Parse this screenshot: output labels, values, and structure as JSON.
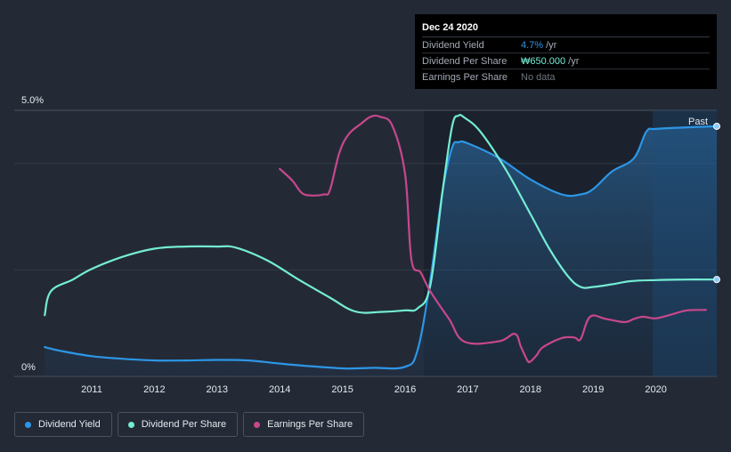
{
  "chart_data": {
    "type": "line",
    "title": "",
    "xlabel": "",
    "ylabel": "",
    "x_ticks": [
      "2011",
      "2012",
      "2013",
      "2014",
      "2015",
      "2016",
      "2017",
      "2018",
      "2019",
      "2020"
    ],
    "y_ticks": [
      "0%",
      "5.0%"
    ],
    "xlim": [
      2010.2,
      2021.0
    ],
    "ylim": [
      0,
      5.0
    ],
    "past_label": "Past",
    "past_region_start": 2016.3,
    "series": [
      {
        "name": "Dividend Yield",
        "color": "#2d96e6",
        "unit": "percent",
        "x": [
          2010.25,
          2010.5,
          2011.0,
          2011.5,
          2012.0,
          2012.5,
          2013.0,
          2013.5,
          2014.0,
          2014.5,
          2015.0,
          2015.2,
          2015.5,
          2016.0,
          2016.2,
          2016.4,
          2016.6,
          2016.75,
          2016.85,
          2017.0,
          2017.5,
          2018.0,
          2018.5,
          2018.8,
          2019.0,
          2019.3,
          2019.65,
          2019.85,
          2020.0,
          2020.5,
          2021.0
        ],
        "values": [
          0.55,
          0.48,
          0.38,
          0.33,
          0.3,
          0.3,
          0.31,
          0.3,
          0.24,
          0.19,
          0.15,
          0.15,
          0.16,
          0.18,
          0.5,
          1.8,
          3.5,
          4.3,
          4.4,
          4.38,
          4.1,
          3.7,
          3.42,
          3.42,
          3.52,
          3.85,
          4.1,
          4.6,
          4.65,
          4.68,
          4.7
        ]
      },
      {
        "name": "Dividend Per Share",
        "color": "#74ecd4",
        "unit": "KRW",
        "x": [
          2010.25,
          2010.35,
          2010.7,
          2011.0,
          2011.5,
          2012.0,
          2012.5,
          2013.0,
          2013.3,
          2013.8,
          2014.3,
          2014.8,
          2015.2,
          2015.6,
          2016.0,
          2016.2,
          2016.4,
          2016.6,
          2016.75,
          2016.85,
          2016.95,
          2017.2,
          2017.6,
          2018.0,
          2018.3,
          2018.6,
          2018.8,
          2019.0,
          2019.3,
          2019.6,
          2020.0,
          2020.5,
          2021.0
        ],
        "values": [
          1.15,
          1.6,
          1.82,
          2.02,
          2.25,
          2.4,
          2.44,
          2.44,
          2.42,
          2.18,
          1.82,
          1.48,
          1.22,
          1.21,
          1.24,
          1.28,
          1.7,
          3.5,
          4.7,
          4.9,
          4.86,
          4.6,
          3.9,
          3.05,
          2.4,
          1.88,
          1.68,
          1.68,
          1.73,
          1.79,
          1.81,
          1.82,
          1.82
        ]
      },
      {
        "name": "Earnings Per Share",
        "color": "#c8478c",
        "unit": "KRW",
        "x": [
          2014.0,
          2014.2,
          2014.35,
          2014.5,
          2014.7,
          2014.8,
          2014.95,
          2015.1,
          2015.3,
          2015.45,
          2015.6,
          2015.8,
          2016.0,
          2016.1,
          2016.25,
          2016.4,
          2016.7,
          2016.95,
          2017.5,
          2017.75,
          2017.85,
          2017.95,
          2018.0,
          2018.1,
          2018.2,
          2018.5,
          2018.7,
          2018.8,
          2018.95,
          2019.2,
          2019.5,
          2019.65,
          2019.8,
          2020.0,
          2020.3,
          2020.5,
          2020.8
        ],
        "values": [
          3.9,
          3.68,
          3.45,
          3.4,
          3.42,
          3.5,
          4.2,
          4.55,
          4.75,
          4.88,
          4.88,
          4.7,
          3.8,
          2.2,
          1.95,
          1.6,
          1.08,
          0.65,
          0.66,
          0.8,
          0.55,
          0.3,
          0.28,
          0.4,
          0.55,
          0.72,
          0.73,
          0.7,
          1.12,
          1.08,
          1.02,
          1.08,
          1.12,
          1.09,
          1.18,
          1.24,
          1.25
        ]
      }
    ]
  },
  "tooltip": {
    "date": "Dec 24 2020",
    "rows": [
      {
        "label": "Dividend Yield",
        "value": "4.7%",
        "unit": "/yr",
        "color": "#2d96e6"
      },
      {
        "label": "Dividend Per Share",
        "value": "₩650.000",
        "unit": "/yr",
        "color": "#74ecd4"
      },
      {
        "label": "Earnings Per Share",
        "value": "No data"
      }
    ]
  },
  "legend": [
    {
      "label": "Dividend Yield",
      "color": "#2d96e6"
    },
    {
      "label": "Dividend Per Share",
      "color": "#74ecd4"
    },
    {
      "label": "Earnings Per Share",
      "color": "#c8478c"
    }
  ]
}
